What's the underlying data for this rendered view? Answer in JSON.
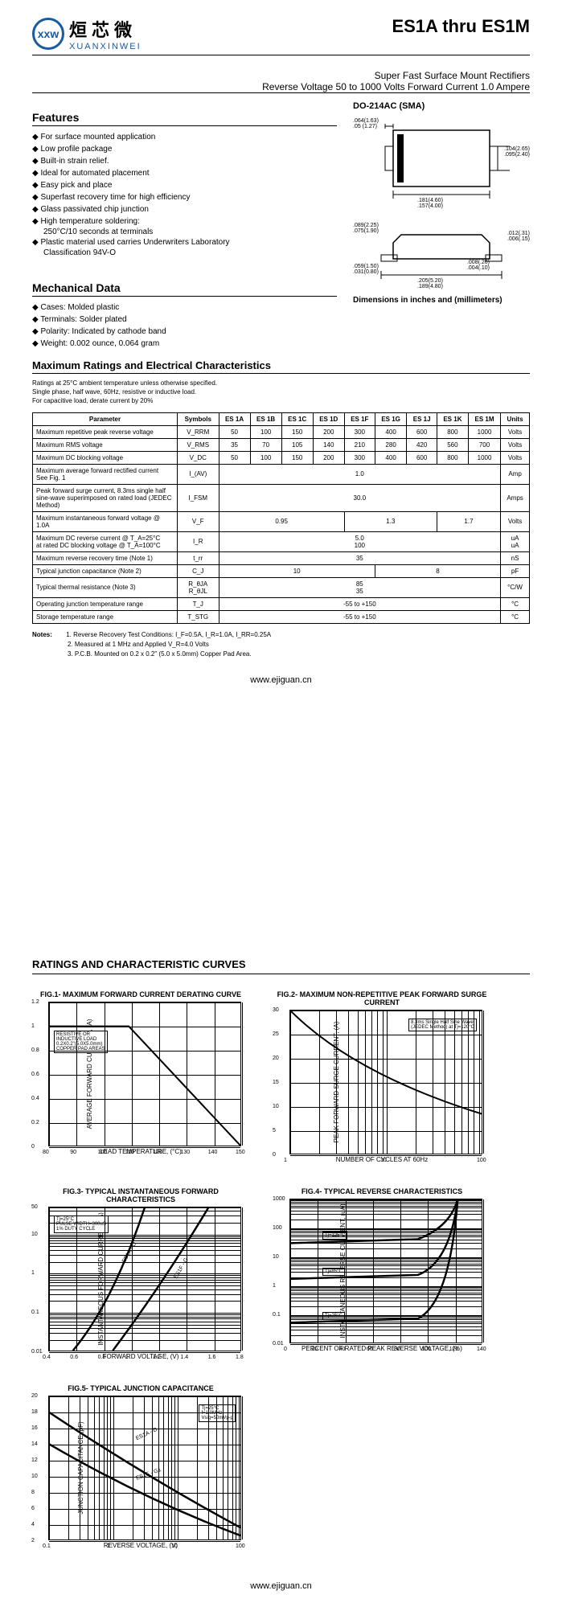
{
  "logo": {
    "abbr": "xxw",
    "cn": "烜芯微",
    "en": "XUANXINWEI"
  },
  "header": {
    "title": "ES1A thru ES1M",
    "sub1": "Super Fast Surface Mount Rectifiers",
    "sub2": "Reverse Voltage 50 to 1000 Volts    Forward Current 1.0 Ampere"
  },
  "features": {
    "title": "Features",
    "items": [
      "For surface mounted application",
      "Low profile package",
      "Built-in strain relief.",
      "Ideal for automated placement",
      "Easy pick and place",
      "Superfast recovery time for high efficiency",
      "Glass passivated chip junction",
      "High temperature soldering:",
      "Plastic material used carries Underwriters Laboratory"
    ],
    "sub_solder": "250°C/10 seconds at terminals",
    "sub_class": "Classification 94V-O"
  },
  "package": {
    "label": "DO-214AC (SMA)",
    "dims_top": {
      "d1": ".064(1.63)",
      "d2": ".05 (1.27)",
      "d3": ".104(2.65)",
      "d4": ".095(2.40)",
      "d5": ".181(4.60)",
      "d6": ".157(4.00)"
    },
    "dims_side": {
      "d1": ".089(2.25)",
      "d2": ".075(1.90)",
      "d3": ".012(.31)",
      "d4": ".006(.15)",
      "d5": ".008(.20)",
      "d6": ".004(.10)",
      "d7": ".059(1.50)",
      "d8": ".031(0.80)",
      "d9": ".205(5.20)",
      "d10": ".189(4.80)"
    },
    "dim_note": "Dimensions in inches and (millimeters)"
  },
  "mechanical": {
    "title": "Mechanical Data",
    "items": [
      "Cases: Molded plastic",
      "Terminals: Solder plated",
      "Polarity: Indicated by cathode band",
      "Weight: 0.002 ounce, 0.064 gram"
    ]
  },
  "ratings": {
    "title": "Maximum Ratings and Electrical Characteristics",
    "intro": [
      "Ratings at 25°C ambient temperature unless otherwise specified.",
      "Single phase, half wave, 60Hz, resistive or inductive load.",
      "For capacitive load, derate current by 20%"
    ],
    "headers": [
      "Parameter",
      "Symbols",
      "ES 1A",
      "ES 1B",
      "ES 1C",
      "ES 1D",
      "ES 1F",
      "ES 1G",
      "ES 1J",
      "ES 1K",
      "ES 1M",
      "Units"
    ],
    "rows": [
      {
        "param": "Maximum repetitive peak reverse voltage",
        "sym": "V_RRM",
        "vals": [
          "50",
          "100",
          "150",
          "200",
          "300",
          "400",
          "600",
          "800",
          "1000"
        ],
        "unit": "Volts"
      },
      {
        "param": "Maximum RMS voltage",
        "sym": "V_RMS",
        "vals": [
          "35",
          "70",
          "105",
          "140",
          "210",
          "280",
          "420",
          "560",
          "700"
        ],
        "unit": "Volts"
      },
      {
        "param": "Maximum DC blocking voltage",
        "sym": "V_DC",
        "vals": [
          "50",
          "100",
          "150",
          "200",
          "300",
          "400",
          "600",
          "800",
          "1000"
        ],
        "unit": "Volts"
      }
    ],
    "merged_rows": [
      {
        "param": "Maximum average forward rectified current\nSee Fig. 1",
        "sym": "I_(AV)",
        "val": "1.0",
        "unit": "Amp"
      },
      {
        "param": "Peak forward surge current, 8.3ms single half sine-wave superimposed on rated load (JEDEC Method)",
        "sym": "I_FSM",
        "val": "30.0",
        "unit": "Amps"
      }
    ],
    "vf_row": {
      "param": "Maximum instantaneous forward voltage @ 1.0A",
      "sym": "V_F",
      "g1": "0.95",
      "g2": "1.3",
      "g3": "1.7",
      "unit": "Volts"
    },
    "ir_row": {
      "param": "Maximum DC reverse current     @ T_A=25°C\nat rated DC blocking voltage      @ T_A=100°C",
      "sym": "I_R",
      "v1": "5.0",
      "v2": "100",
      "unit": "uA\nuA"
    },
    "trr_row": {
      "param": "Maximum reverse recovery time (Note 1)",
      "sym": "t_rr",
      "val": "35",
      "unit": "nS"
    },
    "cj_row": {
      "param": "Typical junction capacitance (Note 2)",
      "sym": "C_J",
      "g1": "10",
      "g2": "8",
      "unit": "pF"
    },
    "rth_row": {
      "param": "Typical thermal resistance (Note 3)",
      "sym": "R_θJA\nR_θJL",
      "v1": "85",
      "v2": "35",
      "unit": "°C/W"
    },
    "tj_row": {
      "param": "Operating junction temperature range",
      "sym": "T_J",
      "val": "-55 to +150",
      "unit": "°C"
    },
    "tstg_row": {
      "param": "Storage temperature range",
      "sym": "T_STG",
      "val": "-55 to +150",
      "unit": "°C"
    }
  },
  "notes": {
    "label": "Notes:",
    "items": [
      "1. Reverse Recovery Test Conditions: I_F=0.5A, I_R=1.0A, I_RR=0.25A",
      "2. Measured at 1 MHz and Applied V_R=4.0 Volts",
      "3. P.C.B. Mounted on 0.2 x 0.2\" (5.0 x 5.0mm) Copper Pad Area."
    ]
  },
  "url": "www.ejiguan.cn",
  "curves": {
    "title": "RATINGS AND CHARACTERISTIC CURVES",
    "fig1": {
      "title": "FIG.1- MAXIMUM FORWARD CURRENT DERATING CURVE",
      "xlabel": "LEAD TEMPERATURE, (°C)",
      "ylabel": "AVERAGE FORWARD CURRENT, (A)",
      "xlim": [
        80,
        150
      ],
      "xticks": [
        80,
        90,
        100,
        110,
        120,
        130,
        140,
        150
      ],
      "ylim": [
        0,
        1.2
      ],
      "yticks": [
        0,
        0.2,
        0.4,
        0.6,
        0.8,
        1.0,
        1.2
      ],
      "annot": "RESISTIVE OR\nINDUCTIVE LOAD\n0.2X0.2\"(5.0X5.0mm)\nCOPPER PAD AREAS",
      "scale": "linear"
    },
    "fig2": {
      "title": "FIG.2- MAXIMUM NON-REPETITIVE PEAK FORWARD SURGE CURRENT",
      "xlabel": "NUMBER OF CYCLES AT 60Hz",
      "ylabel": "PEAK FORWARD SURGE CURRENT, (A)",
      "xlim": [
        1,
        100
      ],
      "xticks": [
        1,
        10,
        100
      ],
      "ylim": [
        0,
        30
      ],
      "yticks": [
        0,
        5,
        10,
        15,
        20,
        25,
        30
      ],
      "annot": "8.3ms Single Half Sine Wave\n(JEDEC Method) at Tj=120°C",
      "xscale": "log"
    },
    "fig3": {
      "title": "FIG.3- TYPICAL INSTANTANEOUS FORWARD CHARACTERISTICS",
      "xlabel": "FORWARD VOLTAGE, (V)",
      "ylabel": "INSTANTANEOUS FORWARD CURRENT, (A)",
      "xlim": [
        0.4,
        1.8
      ],
      "xticks": [
        0.4,
        0.6,
        0.8,
        1.0,
        1.2,
        1.4,
        1.6,
        1.8
      ],
      "ylim": [
        0.01,
        50
      ],
      "yticks": [
        0.01,
        0.1,
        1,
        10,
        50
      ],
      "annot": "Tj=25°C\nPULSE WIDTH=300uS\n1% DUTY CYCLE",
      "curves": [
        "ES1A - D",
        "ES1F - G"
      ],
      "yscale": "log"
    },
    "fig4": {
      "title": "FIG.4- TYPICAL REVERSE CHARACTERISTICS",
      "xlabel": "PERCENT OF RATED PEAK REVERSE VOLTAGE, (%)",
      "ylabel": "INSTANTANEOUS REVERSE CURRENT, (uA)",
      "xlim": [
        0,
        140
      ],
      "xticks": [
        0,
        20,
        40,
        60,
        80,
        100,
        120,
        140
      ],
      "ylim": [
        0.01,
        1000
      ],
      "yticks": [
        0.01,
        0.1,
        1,
        10,
        100,
        1000
      ],
      "annots": [
        "Tj=125°C",
        "Tj=85°C",
        "Tj=25°C"
      ],
      "yscale": "log"
    },
    "fig5": {
      "title": "FIG.5- TYPICAL JUNCTION CAPACITANCE",
      "xlabel": "REVERSE VOLTAGE, (V)",
      "ylabel": "JUNCTION CAPACITANCE (pF)",
      "xlim": [
        0.1,
        100
      ],
      "xticks": [
        0.1,
        1,
        10,
        100
      ],
      "ylim": [
        2,
        20
      ],
      "yticks": [
        2,
        4,
        6,
        8,
        10,
        12,
        14,
        16,
        18,
        20
      ],
      "annot": "Tj=25°C\nf=1.0MHz\nVsig=50mVp-p",
      "curves": [
        "ES1A - D",
        "ES1F - G1"
      ],
      "xscale": "log"
    }
  },
  "colors": {
    "logo_blue": "#1a5a9e",
    "text": "#000000",
    "bg": "#ffffff",
    "border": "#000000"
  }
}
